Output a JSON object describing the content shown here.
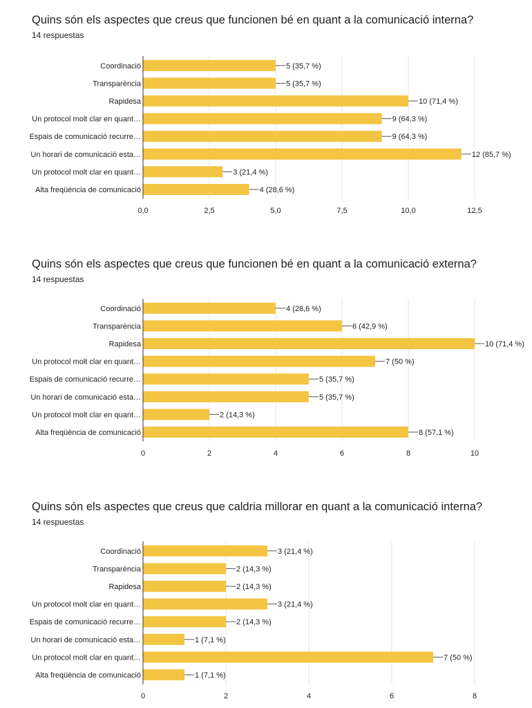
{
  "colors": {
    "bar": "#f4c443",
    "grid": "#e6e6e6",
    "axis": "#333333"
  },
  "chart_data": [
    {
      "type": "bar",
      "orientation": "horizontal",
      "title": "Quins són els aspectes que creus que funcionen bé en quant a la comunicació interna?",
      "subtitle": "14 respuestas",
      "categories": [
        "Coordinació",
        "Transparència",
        "Rapidesa",
        "Un protocol molt clar en quant…",
        "Espais de comunicació recurre…",
        "Un horari de comunicació esta…",
        "Un protocol molt clar en quant…",
        "Alta freqüència de comunicació"
      ],
      "values": [
        5,
        5,
        10,
        9,
        9,
        12,
        3,
        4
      ],
      "labels": [
        "5 (35,7 %)",
        "5 (35,7 %)",
        "10 (71,4 %)",
        "9 (64,3 %)",
        "9 (64,3 %)",
        "12 (85,7 %)",
        "3 (21,4 %)",
        "4 (28,6 %)"
      ],
      "xlim": [
        0,
        12.5
      ],
      "ticks": [
        0,
        2.5,
        5,
        7.5,
        10,
        12.5
      ],
      "tick_labels": [
        "0,0",
        "2,5",
        "5,0",
        "7,5",
        "10,0",
        "12,5"
      ],
      "grid": true
    },
    {
      "type": "bar",
      "orientation": "horizontal",
      "title": "Quins són els aspectes que creus que funcionen bé en quant a la comunicació externa?",
      "subtitle": "14 respuestas",
      "categories": [
        "Coordinació",
        "Transparència",
        "Rapidesa",
        "Un protocol molt clar en quant…",
        "Espais de comunicació recurre…",
        "Un horari de comunicació esta…",
        "Un protocol molt clar en quant…",
        "Alta freqüència de comunicació"
      ],
      "values": [
        4,
        6,
        10,
        7,
        5,
        5,
        2,
        8
      ],
      "labels": [
        "4 (28,6 %)",
        "6 (42,9 %)",
        "10 (71,4 %)",
        "7 (50 %)",
        "5 (35,7 %)",
        "5 (35,7 %)",
        "2 (14,3 %)",
        "8 (57,1 %)"
      ],
      "xlim": [
        0,
        10
      ],
      "ticks": [
        0,
        2,
        4,
        6,
        8,
        10
      ],
      "tick_labels": [
        "0",
        "2",
        "4",
        "6",
        "8",
        "10"
      ],
      "grid": true
    },
    {
      "type": "bar",
      "orientation": "horizontal",
      "title": "Quins són els aspectes que creus que caldria millorar en quant a la comunicació interna?",
      "subtitle": "14 respuestas",
      "categories": [
        "Coordinació",
        "Transparència",
        "Rapidesa",
        "Un protocol molt clar en quant…",
        "Espais de comunicació recurre…",
        "Un horari de comunicació esta…",
        "Un protocol molt clar en quant…",
        "Alta freqüència de comunicació"
      ],
      "values": [
        3,
        2,
        2,
        3,
        2,
        1,
        7,
        1
      ],
      "labels": [
        "3 (21,4 %)",
        "2 (14,3 %)",
        "2 (14,3 %)",
        "3 (21,4 %)",
        "2 (14,3 %)",
        "1 (7,1 %)",
        "7 (50 %)",
        "1 (7,1 %)"
      ],
      "xlim": [
        0,
        8
      ],
      "ticks": [
        0,
        2,
        4,
        6,
        8
      ],
      "tick_labels": [
        "0",
        "2",
        "4",
        "6",
        "8"
      ],
      "grid": true
    }
  ]
}
